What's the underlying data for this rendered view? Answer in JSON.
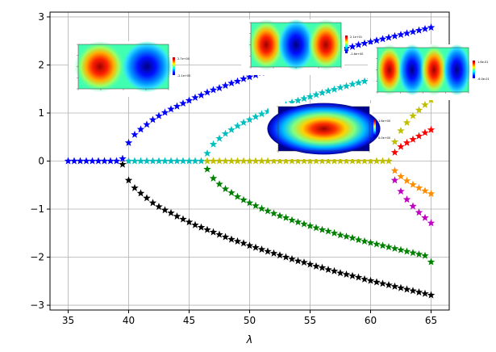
{
  "chart_data": {
    "type": "scatter",
    "title": "",
    "xlabel": "λ",
    "ylabel": "",
    "xlim": [
      33.5,
      66.5
    ],
    "ylim": [
      -3.1,
      3.1
    ],
    "xticks": [
      35,
      40,
      45,
      50,
      55,
      60,
      65
    ],
    "yticks": [
      -3,
      -2,
      -1,
      0,
      1,
      2,
      3
    ],
    "ytick_labels": [
      "−3",
      "−2",
      "−1",
      "0",
      "1",
      "2",
      "3"
    ],
    "grid": true,
    "marker": "star",
    "series": [
      {
        "color": "#0000ff",
        "points": [
          [
            35,
            0
          ],
          [
            35.5,
            0
          ],
          [
            36,
            0
          ],
          [
            36.5,
            0
          ],
          [
            37,
            0
          ],
          [
            37.5,
            0
          ],
          [
            38,
            0
          ],
          [
            38.5,
            0
          ],
          [
            39,
            0
          ],
          [
            39.5,
            0.05
          ],
          [
            40,
            0.38
          ],
          [
            40.5,
            0.55
          ],
          [
            41,
            0.66
          ],
          [
            41.5,
            0.76
          ],
          [
            42,
            0.86
          ],
          [
            42.5,
            0.94
          ],
          [
            43,
            1.01
          ],
          [
            43.5,
            1.08
          ],
          [
            44,
            1.14
          ],
          [
            44.5,
            1.2
          ],
          [
            45,
            1.26
          ],
          [
            45.5,
            1.32
          ],
          [
            46,
            1.37
          ],
          [
            46.5,
            1.43
          ],
          [
            47,
            1.48
          ],
          [
            47.5,
            1.52
          ],
          [
            48,
            1.57
          ],
          [
            48.5,
            1.62
          ],
          [
            49,
            1.66
          ],
          [
            49.5,
            1.71
          ],
          [
            50,
            1.75
          ],
          [
            50.5,
            1.79
          ],
          [
            51,
            1.84
          ],
          [
            51.5,
            1.88
          ],
          [
            52,
            1.92
          ],
          [
            52.5,
            1.96
          ],
          [
            53,
            2.0
          ],
          [
            53.5,
            2.03
          ],
          [
            54,
            2.07
          ],
          [
            54.5,
            2.11
          ],
          [
            55,
            2.14
          ],
          [
            55.5,
            2.18
          ],
          [
            56,
            2.22
          ],
          [
            56.5,
            2.25
          ],
          [
            57,
            2.28
          ],
          [
            57.5,
            2.32
          ],
          [
            58,
            2.35
          ],
          [
            58.5,
            2.38
          ],
          [
            59,
            2.42
          ],
          [
            59.5,
            2.45
          ],
          [
            60,
            2.48
          ],
          [
            60.5,
            2.51
          ],
          [
            61,
            2.54
          ],
          [
            61.5,
            2.57
          ],
          [
            62,
            2.6
          ],
          [
            62.5,
            2.63
          ],
          [
            63,
            2.66
          ],
          [
            63.5,
            2.69
          ],
          [
            64,
            2.72
          ],
          [
            64.5,
            2.75
          ],
          [
            65,
            2.78
          ]
        ]
      },
      {
        "color": "#000000",
        "points": [
          [
            39.5,
            -0.07
          ],
          [
            40,
            -0.4
          ],
          [
            40.5,
            -0.56
          ],
          [
            41,
            -0.67
          ],
          [
            41.5,
            -0.77
          ],
          [
            42,
            -0.87
          ],
          [
            42.5,
            -0.95
          ],
          [
            43,
            -1.02
          ],
          [
            43.5,
            -1.08
          ],
          [
            44,
            -1.15
          ],
          [
            44.5,
            -1.21
          ],
          [
            45,
            -1.27
          ],
          [
            45.5,
            -1.33
          ],
          [
            46,
            -1.38
          ],
          [
            46.5,
            -1.43
          ],
          [
            47,
            -1.48
          ],
          [
            47.5,
            -1.53
          ],
          [
            48,
            -1.58
          ],
          [
            48.5,
            -1.63
          ],
          [
            49,
            -1.67
          ],
          [
            49.5,
            -1.71
          ],
          [
            50,
            -1.76
          ],
          [
            50.5,
            -1.8
          ],
          [
            51,
            -1.84
          ],
          [
            51.5,
            -1.88
          ],
          [
            52,
            -1.92
          ],
          [
            52.5,
            -1.96
          ],
          [
            53,
            -2.0
          ],
          [
            53.5,
            -2.04
          ],
          [
            54,
            -2.08
          ],
          [
            54.5,
            -2.11
          ],
          [
            55,
            -2.15
          ],
          [
            55.5,
            -2.19
          ],
          [
            56,
            -2.22
          ],
          [
            56.5,
            -2.26
          ],
          [
            57,
            -2.29
          ],
          [
            57.5,
            -2.33
          ],
          [
            58,
            -2.36
          ],
          [
            58.5,
            -2.39
          ],
          [
            59,
            -2.42
          ],
          [
            59.5,
            -2.46
          ],
          [
            60,
            -2.49
          ],
          [
            60.5,
            -2.52
          ],
          [
            61,
            -2.55
          ],
          [
            61.5,
            -2.58
          ],
          [
            62,
            -2.61
          ],
          [
            62.5,
            -2.64
          ],
          [
            63,
            -2.67
          ],
          [
            63.5,
            -2.7
          ],
          [
            64,
            -2.73
          ],
          [
            64.5,
            -2.76
          ],
          [
            65,
            -2.79
          ]
        ]
      },
      {
        "color": "#00bfbf",
        "points": [
          [
            40,
            0
          ],
          [
            40.5,
            0
          ],
          [
            41,
            0
          ],
          [
            41.5,
            0
          ],
          [
            42,
            0
          ],
          [
            42.5,
            0
          ],
          [
            43,
            0
          ],
          [
            43.5,
            0
          ],
          [
            44,
            0
          ],
          [
            44.5,
            0
          ],
          [
            45,
            0
          ],
          [
            45.5,
            0
          ],
          [
            46,
            0
          ],
          [
            46.5,
            0.16
          ],
          [
            47,
            0.35
          ],
          [
            47.5,
            0.47
          ],
          [
            48,
            0.57
          ],
          [
            48.5,
            0.65
          ],
          [
            49,
            0.73
          ],
          [
            49.5,
            0.8
          ],
          [
            50,
            0.86
          ],
          [
            50.5,
            0.92
          ],
          [
            51,
            0.98
          ],
          [
            51.5,
            1.03
          ],
          [
            52,
            1.08
          ],
          [
            52.5,
            1.13
          ],
          [
            53,
            1.17
          ],
          [
            53.5,
            1.22
          ],
          [
            54,
            1.26
          ],
          [
            54.5,
            1.3
          ],
          [
            55,
            1.34
          ],
          [
            55.5,
            1.38
          ],
          [
            56,
            1.42
          ],
          [
            56.5,
            1.46
          ],
          [
            57,
            1.49
          ],
          [
            57.5,
            1.53
          ],
          [
            58,
            1.56
          ],
          [
            58.5,
            1.6
          ],
          [
            59,
            1.63
          ],
          [
            59.5,
            1.66
          ],
          [
            60,
            1.69
          ],
          [
            60.5,
            1.72
          ],
          [
            61,
            1.75
          ],
          [
            61.5,
            1.78
          ],
          [
            62,
            1.82
          ]
        ]
      },
      {
        "color": "#008000",
        "points": [
          [
            46.5,
            -0.17
          ],
          [
            47,
            -0.36
          ],
          [
            47.5,
            -0.48
          ],
          [
            48,
            -0.58
          ],
          [
            48.5,
            -0.66
          ],
          [
            49,
            -0.74
          ],
          [
            49.5,
            -0.81
          ],
          [
            50,
            -0.87
          ],
          [
            50.5,
            -0.93
          ],
          [
            51,
            -0.99
          ],
          [
            51.5,
            -1.04
          ],
          [
            52,
            -1.09
          ],
          [
            52.5,
            -1.14
          ],
          [
            53,
            -1.18
          ],
          [
            53.5,
            -1.23
          ],
          [
            54,
            -1.27
          ],
          [
            54.5,
            -1.31
          ],
          [
            55,
            -1.35
          ],
          [
            55.5,
            -1.39
          ],
          [
            56,
            -1.43
          ],
          [
            56.5,
            -1.46
          ],
          [
            57,
            -1.5
          ],
          [
            57.5,
            -1.54
          ],
          [
            58,
            -1.57
          ],
          [
            58.5,
            -1.6
          ],
          [
            59,
            -1.64
          ],
          [
            59.5,
            -1.67
          ],
          [
            60,
            -1.7
          ],
          [
            60.5,
            -1.73
          ],
          [
            61,
            -1.76
          ],
          [
            61.5,
            -1.79
          ],
          [
            62,
            -1.82
          ],
          [
            62.5,
            -1.85
          ],
          [
            63,
            -1.88
          ],
          [
            63.5,
            -1.91
          ],
          [
            64,
            -1.94
          ],
          [
            64.5,
            -1.97
          ],
          [
            65,
            -2.1
          ]
        ]
      },
      {
        "color": "#bfbf00",
        "points": [
          [
            46.5,
            0
          ],
          [
            47,
            0
          ],
          [
            47.5,
            0
          ],
          [
            48,
            0
          ],
          [
            48.5,
            0
          ],
          [
            49,
            0
          ],
          [
            49.5,
            0
          ],
          [
            50,
            0
          ],
          [
            50.5,
            0
          ],
          [
            51,
            0
          ],
          [
            51.5,
            0
          ],
          [
            52,
            0
          ],
          [
            52.5,
            0
          ],
          [
            53,
            0
          ],
          [
            53.5,
            0
          ],
          [
            54,
            0
          ],
          [
            54.5,
            0
          ],
          [
            55,
            0
          ],
          [
            55.5,
            0
          ],
          [
            56,
            0
          ],
          [
            56.5,
            0
          ],
          [
            57,
            0
          ],
          [
            57.5,
            0
          ],
          [
            58,
            0
          ],
          [
            58.5,
            0
          ],
          [
            59,
            0
          ],
          [
            59.5,
            0
          ],
          [
            60,
            0
          ],
          [
            60.5,
            0
          ],
          [
            61,
            0
          ],
          [
            61.5,
            0
          ],
          [
            62,
            0.4
          ],
          [
            62.5,
            0.63
          ],
          [
            63,
            0.8
          ],
          [
            63.5,
            0.94
          ],
          [
            64,
            1.06
          ],
          [
            64.5,
            1.17
          ],
          [
            65,
            1.27
          ]
        ]
      },
      {
        "color": "#ff0000",
        "points": [
          [
            62,
            0.18
          ],
          [
            62.5,
            0.3
          ],
          [
            63,
            0.38
          ],
          [
            63.5,
            0.45
          ],
          [
            64,
            0.52
          ],
          [
            64.5,
            0.59
          ],
          [
            65,
            0.65
          ]
        ]
      },
      {
        "color": "#ff8c00",
        "points": [
          [
            62,
            -0.2
          ],
          [
            62.5,
            -0.32
          ],
          [
            63,
            -0.41
          ],
          [
            63.5,
            -0.49
          ],
          [
            64,
            -0.56
          ],
          [
            64.5,
            -0.62
          ],
          [
            65,
            -0.68
          ]
        ]
      },
      {
        "color": "#bf00bf",
        "points": [
          [
            62,
            -0.4
          ],
          [
            62.5,
            -0.63
          ],
          [
            63,
            -0.8
          ],
          [
            63.5,
            -0.94
          ],
          [
            64,
            -1.07
          ],
          [
            64.5,
            -1.18
          ],
          [
            65,
            -1.29
          ]
        ]
      }
    ],
    "insets": [
      {
        "id": "inset-1",
        "pattern": "two-lobe",
        "colorbar_top": "2.7e+00",
        "colorbar_bottom": "-2.1e+00"
      },
      {
        "id": "inset-2",
        "pattern": "three-lobe",
        "colorbar_top": "2.1e+01",
        "colorbar_bottom": "-1.6e+00"
      },
      {
        "id": "inset-3",
        "pattern": "single-lobe",
        "colorbar_top": "1.6e+00",
        "colorbar_bottom": "0.0e+00"
      },
      {
        "id": "inset-4",
        "pattern": "four-lobe",
        "colorbar_top": "1.6e-01",
        "colorbar_bottom": "-6.0e-01"
      }
    ]
  }
}
